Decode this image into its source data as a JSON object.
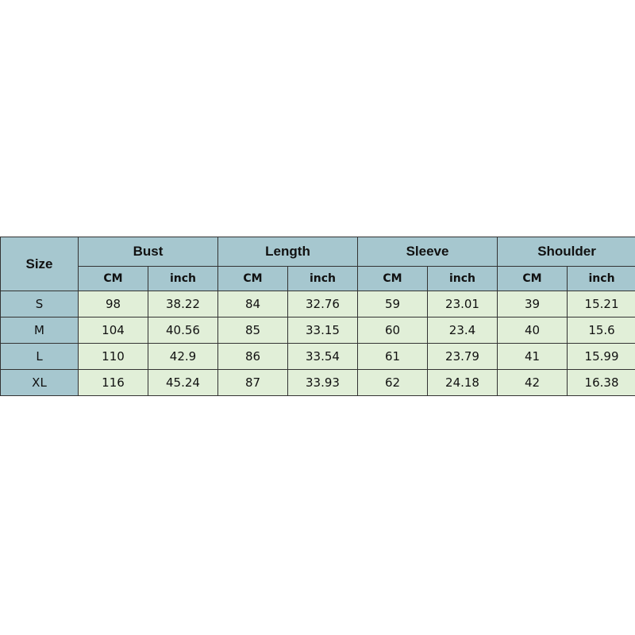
{
  "table": {
    "size_header": "Size",
    "groups": [
      "Bust",
      "Length",
      "Sleeve",
      "Shoulder"
    ],
    "units": [
      "CM",
      "inch"
    ],
    "rows": [
      {
        "size": "S",
        "values": [
          "98",
          "38.22",
          "84",
          "32.76",
          "59",
          "23.01",
          "39",
          "15.21"
        ]
      },
      {
        "size": "M",
        "values": [
          "104",
          "40.56",
          "85",
          "33.15",
          "60",
          "23.4",
          "40",
          "15.6"
        ]
      },
      {
        "size": "L",
        "values": [
          "110",
          "42.9",
          "86",
          "33.54",
          "61",
          "23.79",
          "41",
          "15.99"
        ]
      },
      {
        "size": "XL",
        "values": [
          "116",
          "45.24",
          "87",
          "33.93",
          "62",
          "24.18",
          "42",
          "16.38"
        ]
      }
    ],
    "colors": {
      "header": "#a6c7cf",
      "body": "#e1efd8"
    }
  }
}
